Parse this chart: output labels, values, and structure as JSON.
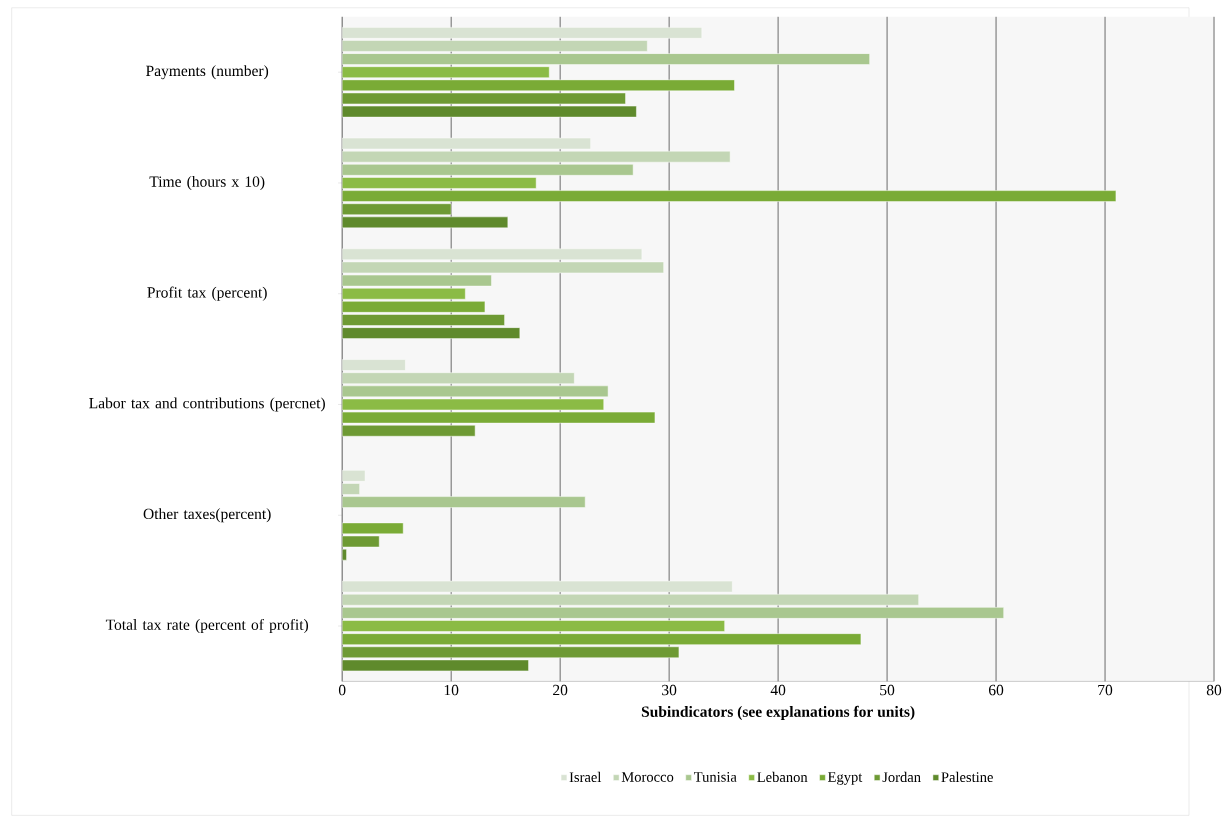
{
  "chart_data": {
    "type": "bar",
    "orientation": "horizontal",
    "xlabel": "Subindicators (see explanations for units)",
    "categories": [
      "Payments (number)",
      "Time (hours x 10)",
      "Profit tax (percent)",
      "Labor tax and contributions (percnet)",
      "Other taxes(percent)",
      "Total tax rate (percent of profit)"
    ],
    "series": [
      {
        "name": "Israel",
        "color": "#d9e3d3",
        "values": [
          33,
          22.8,
          27.5,
          5.8,
          2.1,
          35.8
        ]
      },
      {
        "name": "Morocco",
        "color": "#c3d6b5",
        "values": [
          28,
          35.6,
          29.5,
          21.3,
          1.6,
          52.9
        ]
      },
      {
        "name": "Tunisia",
        "color": "#a9c78f",
        "values": [
          48.4,
          26.7,
          13.7,
          24.4,
          22.3,
          60.7
        ]
      },
      {
        "name": "Lebanon",
        "color": "#8bbb45",
        "values": [
          19,
          17.8,
          11.3,
          24,
          null,
          35.1
        ]
      },
      {
        "name": "Egypt",
        "color": "#7aab36",
        "values": [
          36,
          71,
          13.1,
          28.7,
          5.6,
          47.6
        ]
      },
      {
        "name": "Jordan",
        "color": "#6e9a34",
        "values": [
          26,
          10,
          14.9,
          12.2,
          3.4,
          30.9
        ]
      },
      {
        "name": "Palestine",
        "color": "#5f8a2c",
        "values": [
          27,
          15.2,
          16.3,
          null,
          0.4,
          17.1
        ]
      }
    ],
    "xlim": [
      0,
      80
    ],
    "xticks": [
      0,
      10,
      20,
      30,
      40,
      50,
      60,
      70,
      80
    ],
    "grid": "x",
    "legend": "bottom"
  }
}
